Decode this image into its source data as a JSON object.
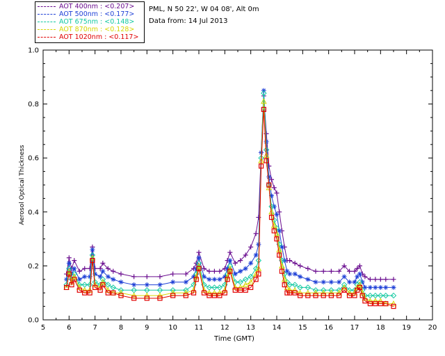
{
  "header": {
    "location": "PML, N 50 22', W 04 08', Alt 0m",
    "date_line": "Data from: 14 Jul 2013"
  },
  "legend": [
    {
      "label": "AOT  400nm : <0.207>",
      "color": "#6a0d8f"
    },
    {
      "label": "AOT  500nm : <0.177>",
      "color": "#1d3fd6"
    },
    {
      "label": "AOT  675nm : <0.148>",
      "color": "#10c8a0"
    },
    {
      "label": "AOT  870nm : <0.128>",
      "color": "#d6d600"
    },
    {
      "label": "AOT 1020nm : <0.117>",
      "color": "#e00000"
    }
  ],
  "chart_data": {
    "type": "line",
    "title": "",
    "xlabel": "Time (GMT)",
    "ylabel": "Aerosol Optical Thickness",
    "xlim": [
      5,
      20
    ],
    "ylim": [
      0.0,
      1.0
    ],
    "xticks": [
      "5",
      "6",
      "7",
      "8",
      "9",
      "10",
      "11",
      "12",
      "13",
      "14",
      "15",
      "16",
      "17",
      "18",
      "19",
      "20"
    ],
    "yticks": [
      "0.0",
      "0.2",
      "0.4",
      "0.6",
      "0.8",
      "1.0"
    ],
    "x": [
      5.9,
      6.0,
      6.1,
      6.2,
      6.4,
      6.6,
      6.8,
      6.9,
      7.0,
      7.2,
      7.3,
      7.5,
      7.7,
      8.0,
      8.5,
      9.0,
      9.5,
      10.0,
      10.5,
      10.8,
      10.9,
      11.0,
      11.2,
      11.4,
      11.6,
      11.8,
      12.0,
      12.1,
      12.2,
      12.4,
      12.6,
      12.8,
      13.0,
      13.2,
      13.3,
      13.4,
      13.5,
      13.6,
      13.7,
      13.8,
      13.9,
      14.0,
      14.1,
      14.2,
      14.3,
      14.4,
      14.5,
      14.7,
      14.9,
      15.2,
      15.5,
      15.8,
      16.1,
      16.4,
      16.6,
      16.8,
      17.0,
      17.1,
      17.2,
      17.3,
      17.4,
      17.6,
      17.8,
      18.0,
      18.2,
      18.5
    ],
    "series": [
      {
        "name": "AOT  400nm",
        "marker": "plus",
        "values": [
          0.17,
          0.23,
          0.19,
          0.22,
          0.18,
          0.19,
          0.19,
          0.27,
          0.19,
          0.19,
          0.21,
          0.19,
          0.18,
          0.17,
          0.16,
          0.16,
          0.16,
          0.17,
          0.17,
          0.19,
          0.21,
          0.25,
          0.19,
          0.18,
          0.18,
          0.18,
          0.19,
          0.22,
          0.25,
          0.21,
          0.22,
          0.24,
          0.27,
          0.32,
          0.38,
          0.62,
          0.83,
          0.69,
          0.57,
          0.52,
          0.49,
          0.47,
          0.4,
          0.33,
          0.27,
          0.22,
          0.22,
          0.21,
          0.2,
          0.19,
          0.18,
          0.18,
          0.18,
          0.18,
          0.2,
          0.18,
          0.18,
          0.19,
          0.2,
          0.17,
          0.16,
          0.15,
          0.15,
          0.15,
          0.15,
          0.15
        ]
      },
      {
        "name": "AOT  500nm",
        "marker": "star",
        "values": [
          0.15,
          0.21,
          0.17,
          0.19,
          0.15,
          0.16,
          0.16,
          0.26,
          0.17,
          0.16,
          0.18,
          0.16,
          0.15,
          0.14,
          0.13,
          0.13,
          0.13,
          0.14,
          0.14,
          0.16,
          0.19,
          0.23,
          0.16,
          0.15,
          0.15,
          0.15,
          0.16,
          0.19,
          0.22,
          0.17,
          0.18,
          0.19,
          0.21,
          0.24,
          0.28,
          0.62,
          0.85,
          0.66,
          0.53,
          0.46,
          0.42,
          0.39,
          0.33,
          0.27,
          0.22,
          0.18,
          0.17,
          0.17,
          0.16,
          0.15,
          0.14,
          0.14,
          0.14,
          0.14,
          0.16,
          0.14,
          0.14,
          0.16,
          0.17,
          0.14,
          0.12,
          0.12,
          0.12,
          0.12,
          0.12,
          0.12
        ]
      },
      {
        "name": "AOT  675nm",
        "marker": "diamond",
        "values": [
          0.13,
          0.19,
          0.15,
          0.17,
          0.13,
          0.13,
          0.13,
          0.24,
          0.14,
          0.13,
          0.15,
          0.13,
          0.12,
          0.11,
          0.11,
          0.11,
          0.11,
          0.11,
          0.11,
          0.13,
          0.17,
          0.21,
          0.13,
          0.12,
          0.12,
          0.12,
          0.13,
          0.17,
          0.2,
          0.14,
          0.14,
          0.15,
          0.16,
          0.19,
          0.22,
          0.6,
          0.84,
          0.63,
          0.5,
          0.42,
          0.37,
          0.34,
          0.28,
          0.22,
          0.17,
          0.14,
          0.13,
          0.13,
          0.12,
          0.12,
          0.11,
          0.11,
          0.11,
          0.11,
          0.13,
          0.11,
          0.11,
          0.13,
          0.14,
          0.11,
          0.09,
          0.09,
          0.09,
          0.09,
          0.09,
          0.09
        ]
      },
      {
        "name": "AOT  870nm",
        "marker": "triangle",
        "values": [
          0.12,
          0.18,
          0.14,
          0.16,
          0.12,
          0.11,
          0.11,
          0.23,
          0.13,
          0.12,
          0.14,
          0.11,
          0.1,
          0.1,
          0.09,
          0.09,
          0.09,
          0.1,
          0.1,
          0.11,
          0.16,
          0.2,
          0.11,
          0.1,
          0.1,
          0.1,
          0.11,
          0.16,
          0.19,
          0.12,
          0.12,
          0.13,
          0.14,
          0.17,
          0.19,
          0.59,
          0.81,
          0.61,
          0.49,
          0.4,
          0.35,
          0.32,
          0.26,
          0.2,
          0.15,
          0.12,
          0.11,
          0.11,
          0.1,
          0.1,
          0.1,
          0.1,
          0.1,
          0.1,
          0.12,
          0.1,
          0.1,
          0.12,
          0.13,
          0.1,
          0.08,
          0.07,
          0.07,
          0.07,
          0.06,
          0.06
        ]
      },
      {
        "name": "AOT 1020nm",
        "marker": "square",
        "values": [
          0.12,
          0.17,
          0.13,
          0.15,
          0.11,
          0.1,
          0.1,
          0.22,
          0.12,
          0.11,
          0.13,
          0.1,
          0.1,
          0.09,
          0.08,
          0.08,
          0.08,
          0.09,
          0.09,
          0.1,
          0.15,
          0.19,
          0.1,
          0.09,
          0.09,
          0.09,
          0.1,
          0.15,
          0.18,
          0.11,
          0.11,
          0.11,
          0.12,
          0.15,
          0.17,
          0.57,
          0.78,
          0.59,
          0.5,
          0.38,
          0.33,
          0.3,
          0.24,
          0.18,
          0.13,
          0.1,
          0.1,
          0.1,
          0.09,
          0.09,
          0.09,
          0.09,
          0.09,
          0.09,
          0.11,
          0.09,
          0.09,
          0.11,
          0.12,
          0.09,
          0.07,
          0.06,
          0.06,
          0.06,
          0.06,
          0.05
        ]
      }
    ],
    "colors": [
      "#6a0d8f",
      "#1d3fd6",
      "#10c8a0",
      "#d6d600",
      "#e00000"
    ],
    "grid": false,
    "legend_position": "top-left"
  }
}
